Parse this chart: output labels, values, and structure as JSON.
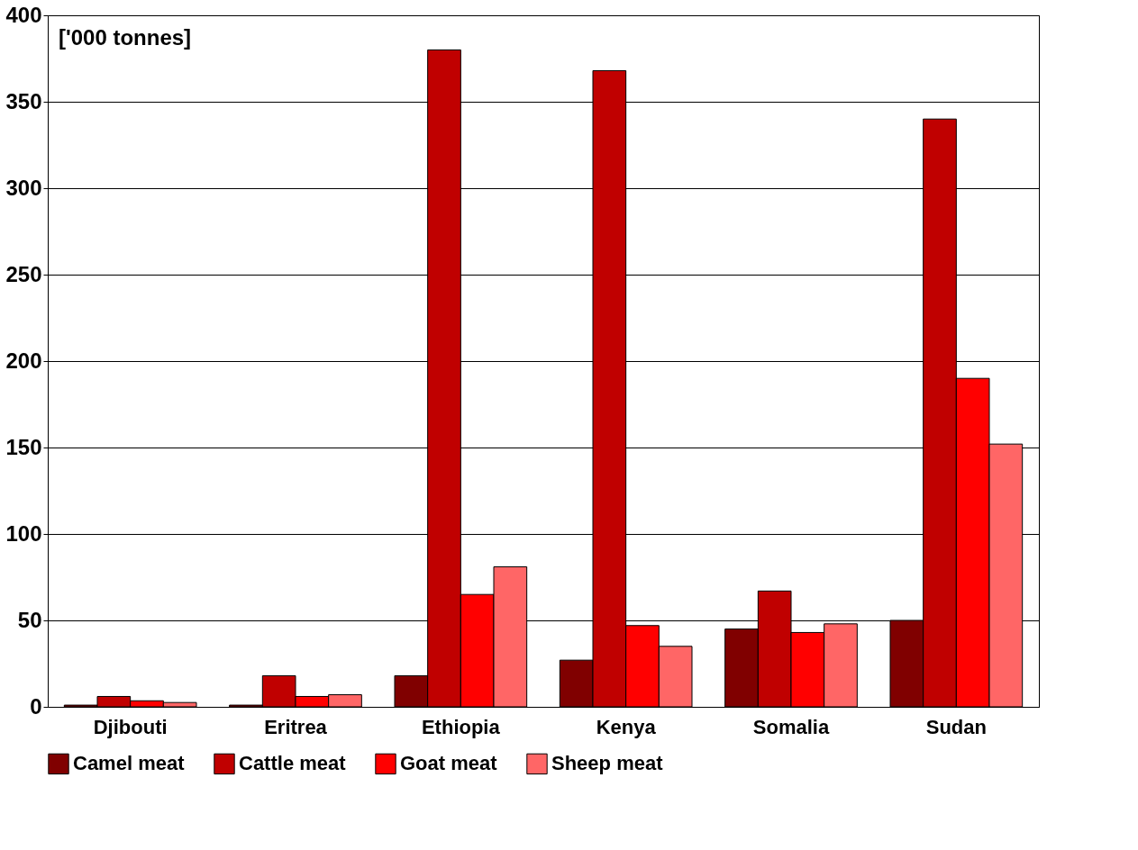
{
  "chart_data": {
    "type": "bar",
    "categories": [
      "Djibouti",
      "Eritrea",
      "Ethiopia",
      "Kenya",
      "Somalia",
      "Sudan"
    ],
    "series": [
      {
        "name": "Camel meat",
        "color": "#800000",
        "values": [
          1,
          1,
          18,
          27,
          45,
          50
        ]
      },
      {
        "name": "Cattle meat",
        "color": "#c00000",
        "values": [
          6,
          18,
          380,
          368,
          67,
          340
        ]
      },
      {
        "name": "Goat meat",
        "color": "#ff0000",
        "values": [
          3.5,
          6,
          65,
          47,
          43,
          190
        ]
      },
      {
        "name": "Sheep meat",
        "color": "#ff6666",
        "values": [
          2.5,
          7,
          81,
          35,
          48,
          152
        ]
      }
    ],
    "ylim": [
      0,
      400
    ],
    "yticks": [
      0,
      50,
      100,
      150,
      200,
      250,
      300,
      350,
      400
    ],
    "grid": "y",
    "legend": "bottom",
    "annotations": [
      "['000 tonnes]"
    ]
  }
}
